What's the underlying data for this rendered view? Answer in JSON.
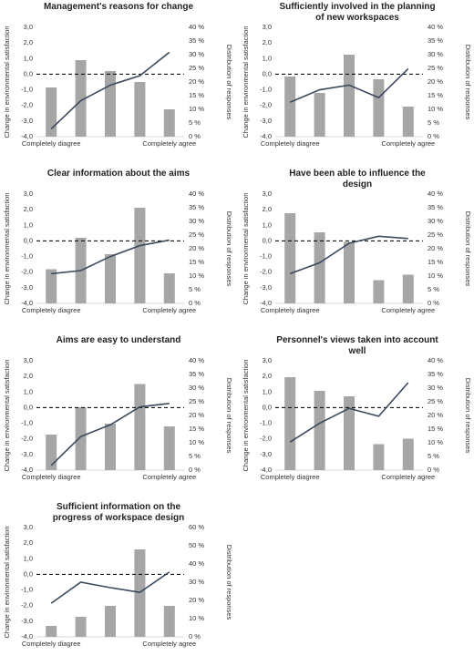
{
  "chart_data": [
    {
      "type": "combo",
      "title": "Management's reasons for change",
      "y_label": "Change in environmental  satisfaction",
      "y2_label": "Distribution of responses",
      "categories": [
        "Completely diagree",
        null,
        null,
        null,
        "Completely agree"
      ],
      "series": [
        {
          "type": "bar",
          "axis": "y2",
          "color": "#a6a6a6",
          "values": [
            18,
            28,
            24,
            20,
            10
          ]
        },
        {
          "type": "line",
          "axis": "y",
          "color": "#3b4a5e",
          "values": [
            -3.5,
            -1.7,
            -0.7,
            -0.1,
            1.4
          ]
        }
      ],
      "hline": {
        "value": 0,
        "style": "dashed"
      },
      "ylim": [
        -4,
        3
      ],
      "yticks": [
        {
          "value": -4,
          "label": "-4,0"
        },
        {
          "value": -3,
          "label": "-3,0"
        },
        {
          "value": -2,
          "label": "-2,0"
        },
        {
          "value": -1,
          "label": "-1,0"
        },
        {
          "value": 0,
          "label": "0,0"
        },
        {
          "value": 1,
          "label": "1,0"
        },
        {
          "value": 2,
          "label": "2,0"
        },
        {
          "value": 3,
          "label": "3,0"
        }
      ],
      "y2lim": [
        0,
        40
      ],
      "y2ticks": [
        {
          "value": 0,
          "label": "0 %"
        },
        {
          "value": 5,
          "label": "5 %"
        },
        {
          "value": 10,
          "label": "10 %"
        },
        {
          "value": 15,
          "label": "15 %"
        },
        {
          "value": 20,
          "label": "20 %"
        },
        {
          "value": 25,
          "label": "25 %"
        },
        {
          "value": 30,
          "label": "30 %"
        },
        {
          "value": 35,
          "label": "35 %"
        },
        {
          "value": 40,
          "label": "40 %"
        }
      ]
    },
    {
      "type": "combo",
      "title": "Sufficiently involved in the planning of new workspaces",
      "y_label": "Change in environmental  satisfaction",
      "y2_label": "Distribution of responses",
      "categories": [
        "Completely diagree",
        null,
        null,
        null,
        "Completely agree"
      ],
      "series": [
        {
          "type": "bar",
          "axis": "y2",
          "color": "#a6a6a6",
          "values": [
            22,
            16,
            30,
            21,
            11
          ]
        },
        {
          "type": "line",
          "axis": "y",
          "color": "#3b4a5e",
          "values": [
            -1.8,
            -1.0,
            -0.7,
            -1.5,
            0.35
          ]
        }
      ],
      "hline": {
        "value": 0,
        "style": "dashed"
      },
      "ylim": [
        -4,
        3
      ],
      "yticks": [
        {
          "value": -4,
          "label": "-4,0"
        },
        {
          "value": -3,
          "label": "-3,0"
        },
        {
          "value": -2,
          "label": "-2,0"
        },
        {
          "value": -1,
          "label": "-1,0"
        },
        {
          "value": 0,
          "label": "0,0"
        },
        {
          "value": 1,
          "label": "1,0"
        },
        {
          "value": 2,
          "label": "2,0"
        },
        {
          "value": 3,
          "label": "3,0"
        }
      ],
      "y2lim": [
        0,
        40
      ],
      "y2ticks": [
        {
          "value": 0,
          "label": "0 %"
        },
        {
          "value": 5,
          "label": "5 %"
        },
        {
          "value": 10,
          "label": "10 %"
        },
        {
          "value": 15,
          "label": "15 %"
        },
        {
          "value": 20,
          "label": "20 %"
        },
        {
          "value": 25,
          "label": "25 %"
        },
        {
          "value": 30,
          "label": "30 %"
        },
        {
          "value": 35,
          "label": "35 %"
        },
        {
          "value": 40,
          "label": "40 %"
        }
      ]
    },
    {
      "type": "combo",
      "title": "Clear information about the aims",
      "y_label": "Change in environmental  satisfaction",
      "y2_label": "Distribution of responses",
      "categories": [
        "Completely diagree",
        null,
        null,
        null,
        "Completely agree"
      ],
      "series": [
        {
          "type": "bar",
          "axis": "y2",
          "color": "#a6a6a6",
          "values": [
            12.5,
            24,
            18,
            35,
            11
          ]
        },
        {
          "type": "line",
          "axis": "y",
          "color": "#3b4a5e",
          "values": [
            -2.1,
            -1.9,
            -1.0,
            -0.3,
            0.05
          ]
        }
      ],
      "hline": {
        "value": 0,
        "style": "dashed"
      },
      "ylim": [
        -4,
        3
      ],
      "yticks": [
        {
          "value": -4,
          "label": "-4,0"
        },
        {
          "value": -3,
          "label": "-3,0"
        },
        {
          "value": -2,
          "label": "-2,0"
        },
        {
          "value": -1,
          "label": "-1,0"
        },
        {
          "value": 0,
          "label": "0,0"
        },
        {
          "value": 1,
          "label": "1,0"
        },
        {
          "value": 2,
          "label": "2,0"
        },
        {
          "value": 3,
          "label": "3,0"
        }
      ],
      "y2lim": [
        0,
        40
      ],
      "y2ticks": [
        {
          "value": 0,
          "label": "0 %"
        },
        {
          "value": 5,
          "label": "5 %"
        },
        {
          "value": 10,
          "label": "10 %"
        },
        {
          "value": 15,
          "label": "15 %"
        },
        {
          "value": 20,
          "label": "20 %"
        },
        {
          "value": 25,
          "label": "25 %"
        },
        {
          "value": 30,
          "label": "30 %"
        },
        {
          "value": 35,
          "label": "35 %"
        },
        {
          "value": 40,
          "label": "40 %"
        }
      ]
    },
    {
      "type": "combo",
      "title": "Have been able to influence the design",
      "y_label": "Change in environmental  satisfaction",
      "y2_label": "Distribution of responses",
      "categories": [
        "Completely diagree",
        null,
        null,
        null,
        "Completely agree"
      ],
      "series": [
        {
          "type": "bar",
          "axis": "y2",
          "color": "#a6a6a6",
          "values": [
            33,
            26,
            22.5,
            8.5,
            10.5
          ]
        },
        {
          "type": "line",
          "axis": "y",
          "color": "#3b4a5e",
          "values": [
            -2.1,
            -1.4,
            -0.15,
            0.3,
            0.15
          ]
        }
      ],
      "hline": {
        "value": 0,
        "style": "dashed"
      },
      "ylim": [
        -4,
        3
      ],
      "yticks": [
        {
          "value": -4,
          "label": "-4,0"
        },
        {
          "value": -3,
          "label": "-3,0"
        },
        {
          "value": -2,
          "label": "-2,0"
        },
        {
          "value": -1,
          "label": "-1,0"
        },
        {
          "value": 0,
          "label": "0,0"
        },
        {
          "value": 1,
          "label": "1,0"
        },
        {
          "value": 2,
          "label": "2,0"
        },
        {
          "value": 3,
          "label": "3,0"
        }
      ],
      "y2lim": [
        0,
        40
      ],
      "y2ticks": [
        {
          "value": 0,
          "label": "0 %"
        },
        {
          "value": 5,
          "label": "5 %"
        },
        {
          "value": 10,
          "label": "10 %"
        },
        {
          "value": 15,
          "label": "15 %"
        },
        {
          "value": 20,
          "label": "20 %"
        },
        {
          "value": 25,
          "label": "25 %"
        },
        {
          "value": 30,
          "label": "30 %"
        },
        {
          "value": 35,
          "label": "35 %"
        },
        {
          "value": 40,
          "label": "40 %"
        }
      ]
    },
    {
      "type": "combo",
      "title": "Aims are easy to understand",
      "y_label": "Change in environmental  satisfaction",
      "y2_label": "Distribution of responses",
      "categories": [
        "Completely diagree",
        null,
        null,
        null,
        "Completely agree"
      ],
      "series": [
        {
          "type": "bar",
          "axis": "y2",
          "color": "#a6a6a6",
          "values": [
            13,
            23,
            17,
            31.5,
            16
          ]
        },
        {
          "type": "line",
          "axis": "y",
          "color": "#3b4a5e",
          "values": [
            -3.7,
            -1.85,
            -1.1,
            0.05,
            0.27
          ]
        }
      ],
      "hline": {
        "value": 0,
        "style": "dashed"
      },
      "ylim": [
        -4,
        3
      ],
      "yticks": [
        {
          "value": -4,
          "label": "-4,0"
        },
        {
          "value": -3,
          "label": "-3,0"
        },
        {
          "value": -2,
          "label": "-2,0"
        },
        {
          "value": -1,
          "label": "-1,0"
        },
        {
          "value": 0,
          "label": "0,0"
        },
        {
          "value": 1,
          "label": "1,0"
        },
        {
          "value": 2,
          "label": "2,0"
        },
        {
          "value": 3,
          "label": "3,0"
        }
      ],
      "y2lim": [
        0,
        40
      ],
      "y2ticks": [
        {
          "value": 0,
          "label": "0 %"
        },
        {
          "value": 5,
          "label": "5 %"
        },
        {
          "value": 10,
          "label": "10 %"
        },
        {
          "value": 15,
          "label": "15 %"
        },
        {
          "value": 20,
          "label": "20 %"
        },
        {
          "value": 25,
          "label": "25 %"
        },
        {
          "value": 30,
          "label": "30 %"
        },
        {
          "value": 35,
          "label": "35 %"
        },
        {
          "value": 40,
          "label": "40 %"
        }
      ]
    },
    {
      "type": "combo",
      "title": "Personnel's views taken into account well",
      "y_label": "Change in environmental  satisfaction",
      "y2_label": "Distribution of responses",
      "categories": [
        "Completely diagree",
        null,
        null,
        null,
        "Completely agree"
      ],
      "series": [
        {
          "type": "bar",
          "axis": "y2",
          "color": "#a6a6a6",
          "values": [
            34,
            29,
            27,
            9.5,
            11.5
          ]
        },
        {
          "type": "line",
          "axis": "y",
          "color": "#3b4a5e",
          "values": [
            -2.2,
            -1.0,
            -0.05,
            -0.55,
            1.6
          ]
        }
      ],
      "hline": {
        "value": 0,
        "style": "dashed"
      },
      "ylim": [
        -4,
        3
      ],
      "yticks": [
        {
          "value": -4,
          "label": "-4,0"
        },
        {
          "value": -3,
          "label": "-3,0"
        },
        {
          "value": -2,
          "label": "-2,0"
        },
        {
          "value": -1,
          "label": "-1,0"
        },
        {
          "value": 0,
          "label": "0,0"
        },
        {
          "value": 1,
          "label": "1,0"
        },
        {
          "value": 2,
          "label": "2,0"
        },
        {
          "value": 3,
          "label": "3,0"
        }
      ],
      "y2lim": [
        0,
        40
      ],
      "y2ticks": [
        {
          "value": 0,
          "label": "0 %"
        },
        {
          "value": 5,
          "label": "5 %"
        },
        {
          "value": 10,
          "label": "10 %"
        },
        {
          "value": 15,
          "label": "15 %"
        },
        {
          "value": 20,
          "label": "20 %"
        },
        {
          "value": 25,
          "label": "25 %"
        },
        {
          "value": 30,
          "label": "30 %"
        },
        {
          "value": 35,
          "label": "35 %"
        },
        {
          "value": 40,
          "label": "40 %"
        }
      ]
    },
    {
      "type": "combo",
      "title": "Sufficient information on the progress of workspace design",
      "y_label": "Change in environmental  satisfaction",
      "y2_label": "Distribution of responses",
      "categories": [
        "Completely diagree",
        null,
        null,
        null,
        "Completely agree"
      ],
      "series": [
        {
          "type": "bar",
          "axis": "y2",
          "color": "#a6a6a6",
          "values": [
            6,
            11,
            17,
            48,
            17
          ]
        },
        {
          "type": "line",
          "axis": "y",
          "color": "#3b4a5e",
          "values": [
            -1.85,
            -0.5,
            -0.85,
            -1.15,
            0.15
          ]
        }
      ],
      "hline": {
        "value": 0,
        "style": "dashed"
      },
      "ylim": [
        -4,
        3
      ],
      "yticks": [
        {
          "value": -4,
          "label": "-4,0"
        },
        {
          "value": -3,
          "label": "-3,0"
        },
        {
          "value": -2,
          "label": "-2,0"
        },
        {
          "value": -1,
          "label": "-1,0"
        },
        {
          "value": 0,
          "label": "0,0"
        },
        {
          "value": 1,
          "label": "1,0"
        },
        {
          "value": 2,
          "label": "2,0"
        },
        {
          "value": 3,
          "label": "3,0"
        }
      ],
      "y2lim": [
        0,
        60
      ],
      "y2ticks": [
        {
          "value": 0,
          "label": "0 %"
        },
        {
          "value": 10,
          "label": "10 %"
        },
        {
          "value": 20,
          "label": "20 %"
        },
        {
          "value": 30,
          "label": "30 %"
        },
        {
          "value": 40,
          "label": "40 %"
        },
        {
          "value": 50,
          "label": "50 %"
        },
        {
          "value": 60,
          "label": "60 %"
        }
      ]
    }
  ]
}
